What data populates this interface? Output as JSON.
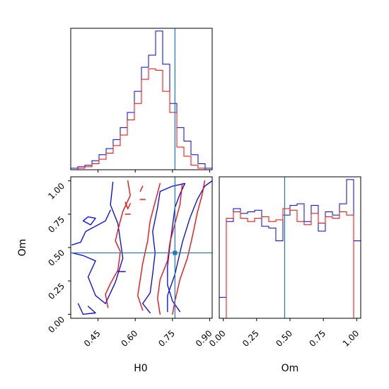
{
  "chart_data": {
    "type": "corner",
    "params": [
      "H0",
      "Om"
    ],
    "colors": {
      "blue": "#0000ff",
      "red": "#ff0000",
      "truth": "#1f77b4"
    },
    "truths": {
      "H0": 0.76,
      "Om": 0.46
    },
    "labels": {
      "x_bottom_left": "H0",
      "x_bottom_right": "Om",
      "y_left": "Om"
    },
    "panels": [
      {
        "id": "h0-hist",
        "type": "histogram",
        "xlim": [
          0.34,
          0.91
        ],
        "bin_edges": [
          0.34,
          0.3685,
          0.397,
          0.4255,
          0.454,
          0.4825,
          0.511,
          0.5395,
          0.568,
          0.5965,
          0.625,
          0.6535,
          0.682,
          0.7105,
          0.739,
          0.7675,
          0.796,
          0.8245,
          0.853,
          0.8815,
          0.91
        ],
        "series": [
          {
            "name": "",
            "color": "blue",
            "counts": [
              1,
              2,
              3,
              6,
              10,
              14,
              20,
              28,
              38,
              52,
              68,
              76,
              92,
              70,
              44,
              28,
              19,
              10,
              4,
              1
            ]
          },
          {
            "name": "",
            "color": "red",
            "counts": [
              0,
              1,
              2,
              4,
              7,
              11,
              16,
              23,
              33,
              44,
              60,
              67,
              66,
              52,
              38,
              15,
              9,
              3,
              1,
              0
            ]
          }
        ]
      },
      {
        "id": "om-hist",
        "type": "histogram",
        "xlim": [
          -0.03,
          1.03
        ],
        "bin_edges": [
          -0.03,
          0.023,
          0.076,
          0.129,
          0.182,
          0.235,
          0.288,
          0.341,
          0.394,
          0.447,
          0.5,
          0.553,
          0.606,
          0.659,
          0.712,
          0.765,
          0.818,
          0.871,
          0.924,
          0.977,
          1.03
        ],
        "series": [
          {
            "name": "",
            "color": "blue",
            "counts": [
              13,
              60,
              68,
              65,
              66,
              67,
              57,
              56,
              48,
              64,
              70,
              71,
              60,
              70,
              54,
              66,
              64,
              71,
              86,
              48
            ]
          },
          {
            "name": "",
            "color": "red",
            "counts": [
              0,
              62,
              66,
              62,
              60,
              62,
              63,
              60,
              61,
              68,
              67,
              60,
              58,
              65,
              59,
              63,
              62,
              66,
              64,
              0
            ]
          }
        ]
      },
      {
        "id": "h0-om-contours",
        "type": "contour",
        "xlim": [
          0.34,
          0.91
        ],
        "ylim": [
          -0.03,
          1.03
        ],
        "series": [
          {
            "name": "",
            "color": "blue",
            "paths": [
              [
                [
                  0.345,
                  0.46
                ],
                [
                  0.39,
                  0.44
                ],
                [
                  0.44,
                  0.4
                ],
                [
                  0.41,
                  0.28
                ],
                [
                  0.44,
                  0.14
                ],
                [
                  0.48,
                  0.08
                ],
                [
                  0.52,
                  0.24
                ],
                [
                  0.55,
                  0.42
                ],
                [
                  0.53,
                  0.68
                ],
                [
                  0.5,
                  0.82
                ],
                [
                  0.51,
                  0.99
                ]
              ],
              [
                [
                  0.345,
                  0.52
                ],
                [
                  0.38,
                  0.54
                ],
                [
                  0.4,
                  0.62
                ],
                [
                  0.44,
                  0.66
                ],
                [
                  0.48,
                  0.7
                ],
                [
                  0.5,
                  0.78
                ]
              ],
              [
                [
                  0.39,
                  0.7
                ],
                [
                  0.41,
                  0.73
                ],
                [
                  0.44,
                  0.72
                ],
                [
                  0.42,
                  0.67
                ],
                [
                  0.39,
                  0.7
                ]
              ],
              [
                [
                  0.37,
                  0.08
                ],
                [
                  0.39,
                  0.0
                ],
                [
                  0.44,
                  0.01
                ],
                [
                  0.41,
                  0.06
                ]
              ],
              [
                [
                  0.66,
                  0.01
                ],
                [
                  0.63,
                  0.08
                ],
                [
                  0.66,
                  0.16
                ],
                [
                  0.67,
                  0.3
                ],
                [
                  0.68,
                  0.46
                ],
                [
                  0.67,
                  0.62
                ],
                [
                  0.69,
                  0.8
                ],
                [
                  0.7,
                  0.92
                ],
                [
                  0.75,
                  0.96
                ],
                [
                  0.8,
                  0.98
                ],
                [
                  0.78,
                  0.9
                ],
                [
                  0.76,
                  0.8
                ],
                [
                  0.75,
                  0.66
                ],
                [
                  0.74,
                  0.52
                ],
                [
                  0.73,
                  0.36
                ],
                [
                  0.73,
                  0.22
                ],
                [
                  0.75,
                  0.1
                ],
                [
                  0.78,
                  0.02
                ]
              ],
              [
                [
                  0.73,
                  0.02
                ],
                [
                  0.73,
                  0.14
                ],
                [
                  0.76,
                  0.3
                ],
                [
                  0.79,
                  0.54
                ],
                [
                  0.82,
                  0.72
                ],
                [
                  0.85,
                  0.86
                ],
                [
                  0.88,
                  0.96
                ],
                [
                  0.91,
                  1.0
                ]
              ],
              [
                [
                  0.53,
                  0.32
                ],
                [
                  0.56,
                  0.32
                ]
              ]
            ]
          },
          {
            "name": "",
            "color": "red",
            "paths": [
              [
                [
                  0.49,
                  0.05
                ],
                [
                  0.48,
                  0.15
                ],
                [
                  0.5,
                  0.23
                ],
                [
                  0.53,
                  0.33
                ],
                [
                  0.54,
                  0.47
                ],
                [
                  0.52,
                  0.55
                ],
                [
                  0.53,
                  0.63
                ],
                [
                  0.55,
                  0.77
                ],
                [
                  0.58,
                  0.89
                ],
                [
                  0.57,
                  1.0
                ]
              ],
              [
                [
                  0.63,
                  0.03
                ],
                [
                  0.61,
                  0.14
                ],
                [
                  0.62,
                  0.26
                ],
                [
                  0.63,
                  0.38
                ],
                [
                  0.65,
                  0.55
                ],
                [
                  0.66,
                  0.7
                ],
                [
                  0.68,
                  0.84
                ],
                [
                  0.7,
                  0.98
                ]
              ],
              [
                [
                  0.7,
                  0.0
                ],
                [
                  0.69,
                  0.12
                ],
                [
                  0.7,
                  0.26
                ],
                [
                  0.73,
                  0.4
                ],
                [
                  0.74,
                  0.54
                ],
                [
                  0.76,
                  0.68
                ],
                [
                  0.78,
                  0.82
                ],
                [
                  0.79,
                  0.98
                ]
              ],
              [
                [
                  0.75,
                  0.0
                ],
                [
                  0.76,
                  0.1
                ],
                [
                  0.78,
                  0.26
                ],
                [
                  0.81,
                  0.42
                ],
                [
                  0.83,
                  0.58
                ],
                [
                  0.85,
                  0.76
                ],
                [
                  0.87,
                  0.9
                ],
                [
                  0.88,
                  1.0
                ]
              ],
              [
                [
                  0.62,
                  0.92
                ],
                [
                  0.63,
                  0.96
                ]
              ],
              [
                [
                  0.62,
                  0.86
                ],
                [
                  0.64,
                  0.86
                ]
              ],
              [
                [
                  0.56,
                  0.84
                ],
                [
                  0.57,
                  0.79
                ],
                [
                  0.58,
                  0.83
                ]
              ],
              [
                [
                  0.56,
                  0.75
                ],
                [
                  0.58,
                  0.75
                ]
              ]
            ]
          }
        ]
      }
    ],
    "axes": {
      "h0-om-contours": {
        "x_ticks": [
          0.45,
          0.6,
          0.75,
          0.9
        ],
        "x_tick_labels": [
          "0.45",
          "0.60",
          "0.75",
          "0.90"
        ],
        "y_ticks": [
          0.0,
          0.25,
          0.5,
          0.75,
          1.0
        ],
        "y_tick_labels": [
          "0.00",
          "0.25",
          "0.50",
          "0.75",
          "1.00"
        ]
      },
      "om-hist": {
        "x_ticks": [
          0.0,
          0.25,
          0.5,
          0.75,
          1.0
        ],
        "x_tick_labels": [
          "0.00",
          "0.25",
          "0.50",
          "0.75",
          "1.00"
        ]
      },
      "h0-hist": {
        "x_ticks": [
          0.45,
          0.6,
          0.75,
          0.9
        ],
        "x_tick_labels": []
      }
    },
    "grid": false,
    "legend": "none"
  }
}
